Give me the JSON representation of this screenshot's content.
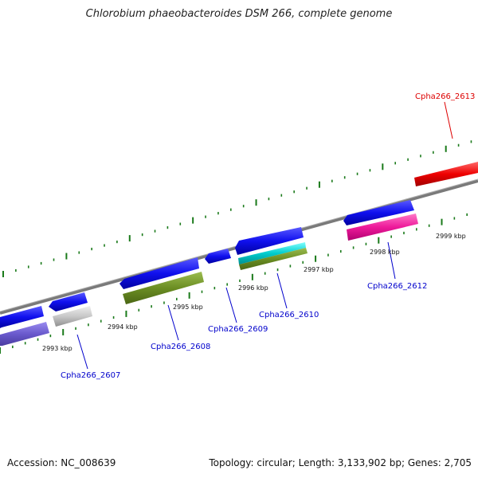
{
  "title": "Chlorobium phaeobacteroides DSM 266, complete genome",
  "accession": "Accession: NC_008639",
  "summary": "Topology: circular; Length: 3,133,902 bp; Genes: 2,705",
  "scale_labels": [
    "2993 kbp",
    "2994 kbp",
    "2995 kbp",
    "2996 kbp",
    "2997 kbp",
    "2998 kbp",
    "2999 kbp"
  ],
  "gene_labels": [
    {
      "text": "Cpha266_2607",
      "color": "#0000cc"
    },
    {
      "text": "Cpha266_2608",
      "color": "#0000cc"
    },
    {
      "text": "Cpha266_2609",
      "color": "#0000cc"
    },
    {
      "text": "Cpha266_2610",
      "color": "#0000cc"
    },
    {
      "text": "Cpha266_2612",
      "color": "#0000cc"
    },
    {
      "text": "Cpha266_2613",
      "color": "#dd0000"
    }
  ],
  "colors": {
    "backbone": "#808080",
    "tick": "#1a7a1a",
    "gene_blue": "#1010ee",
    "cog_slate": "#6a5acd",
    "cog_gray": "#c8c8c8",
    "cog_olive": "#6b8e23",
    "cog_cyan": "#00cccc",
    "cog_magenta": "#ee1a9a",
    "gene_red": "#ee0000"
  }
}
